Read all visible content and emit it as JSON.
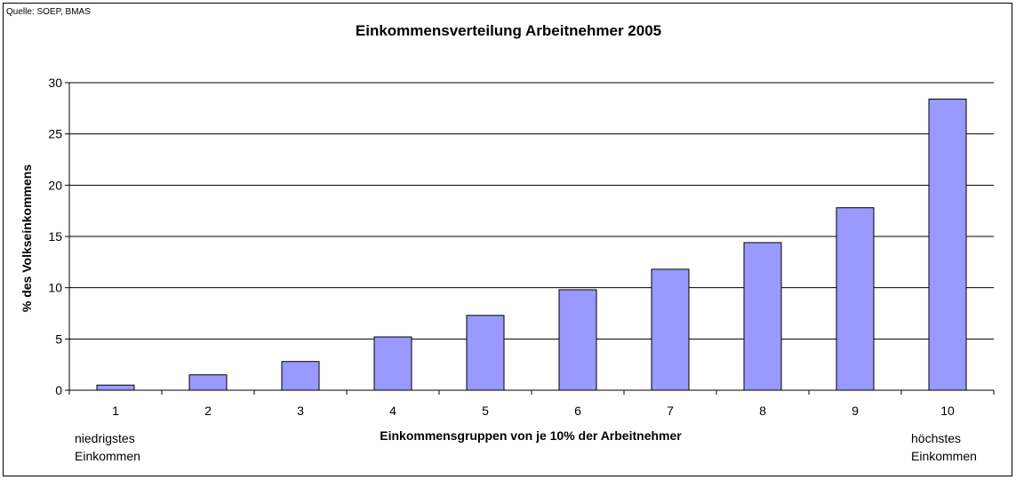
{
  "source_note": "Quelle: SOEP, BMAS",
  "chart_data": {
    "type": "bar",
    "title": "Einkommensverteilung Arbeitnehmer 2005",
    "xlabel": "Einkommensgruppen von je 10% der Arbeitnehmer",
    "ylabel": "% des Volkseinkommens",
    "categories": [
      "1",
      "2",
      "3",
      "4",
      "5",
      "6",
      "7",
      "8",
      "9",
      "10"
    ],
    "values": [
      0.5,
      1.5,
      2.8,
      5.2,
      7.3,
      9.8,
      11.8,
      14.4,
      17.8,
      28.4
    ],
    "ylim": [
      0,
      30
    ],
    "yticks": [
      0,
      5,
      10,
      15,
      20,
      25,
      30
    ],
    "grid": true,
    "legend": "none",
    "bar_color": "#9999ff",
    "annotations": {
      "low_line1": "niedrigstes",
      "low_line2": "Einkommen",
      "high_line1": "höchstes",
      "high_line2": "Einkommen"
    }
  }
}
